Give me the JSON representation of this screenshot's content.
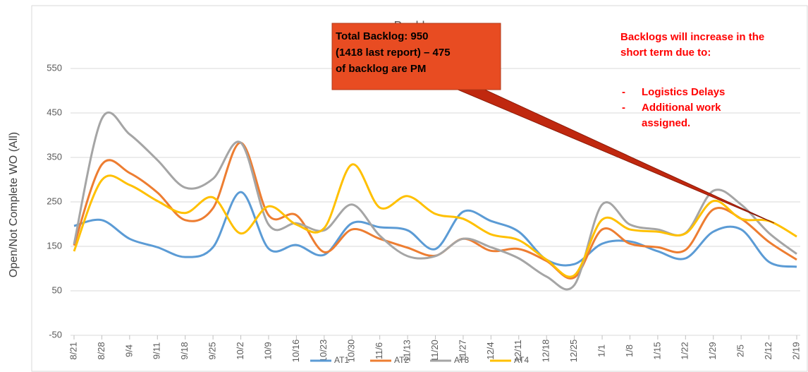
{
  "chart_data": {
    "type": "line",
    "title": "Backlogs",
    "y_label": "Open/Not Complete WO (All)",
    "categories": [
      "8/21",
      "8/28",
      "9/4",
      "9/11",
      "9/18",
      "9/25",
      "10/2",
      "10/9",
      "10/16",
      "10/23",
      "10/30",
      "11/6",
      "11/13",
      "11/20",
      "11/27",
      "12/4",
      "12/11",
      "12/18",
      "12/25",
      "1/1",
      "1/8",
      "1/15",
      "1/22",
      "1/29",
      "2/5",
      "2/12",
      "2/19"
    ],
    "series": [
      {
        "name": "AT1",
        "color": "#5b9bd5",
        "values": [
          196,
          209,
          167,
          148,
          126,
          148,
          272,
          145,
          153,
          131,
          202,
          193,
          186,
          144,
          228,
          207,
          183,
          120,
          110,
          156,
          161,
          139,
          123,
          183,
          188,
          115,
          104
        ]
      },
      {
        "name": "AT2",
        "color": "#ed7d31",
        "values": [
          152,
          334,
          315,
          271,
          209,
          236,
          383,
          220,
          220,
          137,
          188,
          167,
          147,
          129,
          167,
          140,
          144,
          117,
          80,
          188,
          156,
          148,
          142,
          233,
          212,
          160,
          120
        ]
      },
      {
        "name": "AT3",
        "color": "#a5a5a5",
        "values": [
          155,
          437,
          402,
          344,
          282,
          302,
          383,
          199,
          202,
          186,
          244,
          174,
          128,
          128,
          167,
          148,
          123,
          82,
          63,
          244,
          199,
          188,
          180,
          275,
          244,
          180,
          133
        ]
      },
      {
        "name": "AT4",
        "color": "#ffc000",
        "values": [
          139,
          299,
          288,
          252,
          225,
          260,
          179,
          240,
          199,
          191,
          334,
          237,
          263,
          223,
          212,
          177,
          164,
          120,
          85,
          210,
          188,
          183,
          179,
          252,
          212,
          207,
          172
        ]
      }
    ],
    "ylim": [
      -50,
      650
    ],
    "yticks": [
      -50,
      50,
      150,
      250,
      350,
      450,
      550
    ],
    "grid": true,
    "legend": "bottom",
    "callout": [
      "Total Backlog: 950",
      "(1418 last report) – 475",
      "of backlog are PM"
    ],
    "note": {
      "lines": [
        "Backlogs will increase in the",
        "short term due to:"
      ],
      "bullets": [
        [
          "Logistics Delays"
        ],
        [
          "Additional work",
          "assigned."
        ]
      ]
    }
  }
}
